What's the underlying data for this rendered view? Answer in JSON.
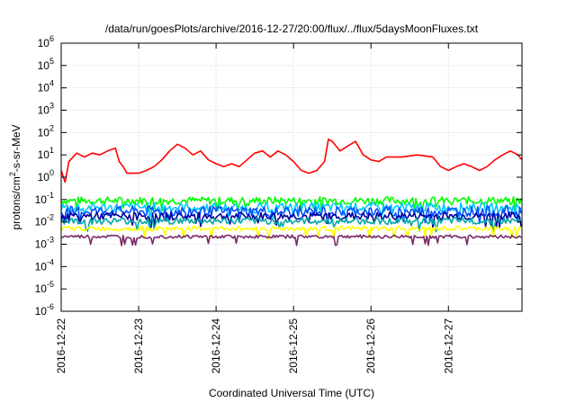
{
  "chart_data": {
    "type": "line",
    "title": "/data/run/goesPlots/archive/2016-12-27/20:00/flux/../flux/5daysMoonFluxes.txt",
    "xlabel": "Coordinated Universal Time (UTC)",
    "ylabel_base": "protons/cm",
    "ylabel_sup": "2",
    "ylabel_rest": "-s-sr-MeV",
    "y_scale": "log",
    "ylim": [
      1e-06,
      1000000.0
    ],
    "y_ticks": [
      {
        "base": "10",
        "exp": "-6"
      },
      {
        "base": "10",
        "exp": "-5"
      },
      {
        "base": "10",
        "exp": "-4"
      },
      {
        "base": "10",
        "exp": "-3"
      },
      {
        "base": "10",
        "exp": "-2"
      },
      {
        "base": "10",
        "exp": "-1"
      },
      {
        "base": "10",
        "exp": "0"
      },
      {
        "base": "10",
        "exp": "1"
      },
      {
        "base": "10",
        "exp": "2"
      },
      {
        "base": "10",
        "exp": "3"
      },
      {
        "base": "10",
        "exp": "4"
      },
      {
        "base": "10",
        "exp": "5"
      },
      {
        "base": "10",
        "exp": "6"
      }
    ],
    "x_ticks": [
      "2016-12-22",
      "2016-12-23",
      "2016-12-24",
      "2016-12-25",
      "2016-12-26",
      "2016-12-27"
    ],
    "xlim_days": [
      0,
      5.95
    ],
    "grid": true,
    "legend": "none",
    "series": [
      {
        "color": "#ff0000",
        "points": [
          [
            0,
            2
          ],
          [
            0.05,
            0.6
          ],
          [
            0.1,
            5
          ],
          [
            0.2,
            12
          ],
          [
            0.3,
            8
          ],
          [
            0.4,
            12
          ],
          [
            0.5,
            10
          ],
          [
            0.6,
            15
          ],
          [
            0.7,
            20
          ],
          [
            0.75,
            5
          ],
          [
            0.8,
            3
          ],
          [
            0.85,
            1.5
          ],
          [
            1.0,
            1.5
          ],
          [
            1.1,
            2
          ],
          [
            1.2,
            3
          ],
          [
            1.3,
            6
          ],
          [
            1.4,
            15
          ],
          [
            1.5,
            30
          ],
          [
            1.6,
            20
          ],
          [
            1.7,
            10
          ],
          [
            1.8,
            15
          ],
          [
            1.9,
            6
          ],
          [
            2.0,
            4
          ],
          [
            2.1,
            3
          ],
          [
            2.2,
            4
          ],
          [
            2.3,
            3
          ],
          [
            2.4,
            6
          ],
          [
            2.5,
            12
          ],
          [
            2.6,
            15
          ],
          [
            2.7,
            8
          ],
          [
            2.8,
            15
          ],
          [
            2.9,
            10
          ],
          [
            3.0,
            5
          ],
          [
            3.1,
            2
          ],
          [
            3.2,
            1.5
          ],
          [
            3.3,
            2
          ],
          [
            3.4,
            5
          ],
          [
            3.45,
            50
          ],
          [
            3.5,
            40
          ],
          [
            3.6,
            15
          ],
          [
            3.7,
            25
          ],
          [
            3.8,
            40
          ],
          [
            3.9,
            10
          ],
          [
            4.0,
            6
          ],
          [
            4.1,
            5
          ],
          [
            4.2,
            8
          ],
          [
            4.4,
            8
          ],
          [
            4.6,
            10
          ],
          [
            4.8,
            8
          ],
          [
            4.9,
            3
          ],
          [
            5.0,
            2
          ],
          [
            5.1,
            3
          ],
          [
            5.2,
            4
          ],
          [
            5.3,
            3
          ],
          [
            5.4,
            2
          ],
          [
            5.5,
            3
          ],
          [
            5.6,
            6
          ],
          [
            5.7,
            10
          ],
          [
            5.8,
            15
          ],
          [
            5.9,
            10
          ],
          [
            5.95,
            6
          ]
        ]
      },
      {
        "color": "#00ff00",
        "base": 0.09,
        "amp": 0.35
      },
      {
        "color": "#00c8ff",
        "base": 0.045,
        "amp": 0.4
      },
      {
        "color": "#0050ff",
        "base": 0.03,
        "amp": 0.45
      },
      {
        "color": "#0000a0",
        "base": 0.018,
        "amp": 0.35
      },
      {
        "color": "#00a8a8",
        "base": 0.011,
        "amp": 0.3
      },
      {
        "color": "#ffff00",
        "base": 0.005,
        "amp": 0.2
      },
      {
        "color": "#7a2a6a",
        "base": 0.0022,
        "amp": 0.15
      }
    ]
  }
}
